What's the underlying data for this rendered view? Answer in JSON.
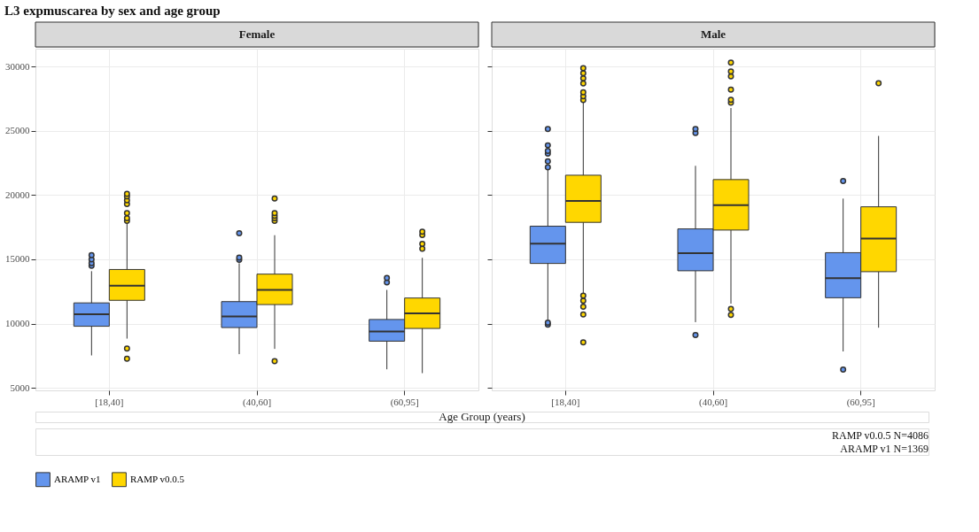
{
  "chart_data": [
    {
      "type": "box",
      "title": "L3 expmuscarea by sex and age group",
      "subtitle": "Female",
      "xlabel": "Age Group (years)",
      "categories": [
        "[18,40]",
        "(40,60]",
        "(60,95]"
      ],
      "ylim": [
        4800,
        31400
      ],
      "yticks": [
        5000,
        10000,
        15000,
        20000,
        25000,
        30000
      ],
      "grid": true,
      "legend": "bottom",
      "series": [
        {
          "name": "ARAMP v1",
          "color": "#6495ed",
          "boxes": [
            {
              "low": 7520,
              "q1": 9790,
              "median": 10730,
              "q3": 11610,
              "high": 14080,
              "outliers": [
                14500,
                14700,
                15000,
                15320
              ]
            },
            {
              "low": 7620,
              "q1": 9690,
              "median": 10550,
              "q3": 11710,
              "high": 14700,
              "outliers": [
                14960,
                15140,
                17030
              ]
            },
            {
              "low": 6440,
              "q1": 8630,
              "median": 9390,
              "q3": 10320,
              "high": 12620,
              "outliers": [
                13200,
                13550
              ]
            }
          ]
        },
        {
          "name": "RAMP v0.0.5",
          "color": "#ffd700",
          "boxes": [
            {
              "low": 8830,
              "q1": 11810,
              "median": 12950,
              "q3": 14210,
              "high": 17900,
              "outliers": [
                7270,
                8050,
                18000,
                18200,
                18600,
                19300,
                19600,
                19900,
                20100
              ]
            },
            {
              "low": 8030,
              "q1": 11480,
              "median": 12620,
              "q3": 13850,
              "high": 16880,
              "outliers": [
                7070,
                18000,
                18200,
                18400,
                18600,
                19730
              ]
            },
            {
              "low": 6140,
              "q1": 9620,
              "median": 10800,
              "q3": 11990,
              "high": 15120,
              "outliers": [
                15820,
                16200,
                16900,
                17160
              ]
            }
          ]
        }
      ]
    },
    {
      "type": "box",
      "subtitle": "Male",
      "categories": [
        "[18,40]",
        "(40,60]",
        "(60,95]"
      ],
      "ylim": [
        4800,
        31400
      ],
      "yticks": [
        5000,
        10000,
        15000,
        20000,
        25000,
        30000
      ],
      "grid": true,
      "tick_labels": "x",
      "annotations": [
        "RAMP v0.0.5 N=4086",
        "ARAMP v1 N=1369"
      ],
      "series": [
        {
          "name": "ARAMP v1",
          "color": "#6495ed",
          "boxes": [
            {
              "low": 10180,
              "q1": 14680,
              "median": 16230,
              "q3": 17580,
              "high": 22000,
              "outliers": [
                9910,
                10070,
                22170,
                22630,
                23240,
                23440,
                23880,
                25140
              ]
            },
            {
              "low": 10110,
              "q1": 14110,
              "median": 15480,
              "q3": 17370,
              "high": 22280,
              "outliers": [
                9110,
                24840,
                25140
              ]
            },
            {
              "low": 7830,
              "q1": 12010,
              "median": 13540,
              "q3": 15520,
              "high": 19730,
              "outliers": [
                6420,
                21100
              ]
            }
          ]
        },
        {
          "name": "RAMP v0.0.5",
          "color": "#ffd700",
          "boxes": [
            {
              "low": 12240,
              "q1": 17880,
              "median": 19540,
              "q3": 21550,
              "high": 27300,
              "outliers": [
                8540,
                10710,
                11320,
                11780,
                12170,
                27400,
                27700,
                28000,
                28700,
                29100,
                29480,
                29890
              ]
            },
            {
              "low": 11550,
              "q1": 17280,
              "median": 19220,
              "q3": 21210,
              "high": 26780,
              "outliers": [
                10680,
                11140,
                27190,
                27420,
                28220,
                29250,
                29630,
                30320
              ]
            },
            {
              "low": 9680,
              "q1": 14040,
              "median": 16620,
              "q3": 19090,
              "high": 24610,
              "outliers": [
                28720
              ]
            }
          ]
        }
      ]
    }
  ]
}
